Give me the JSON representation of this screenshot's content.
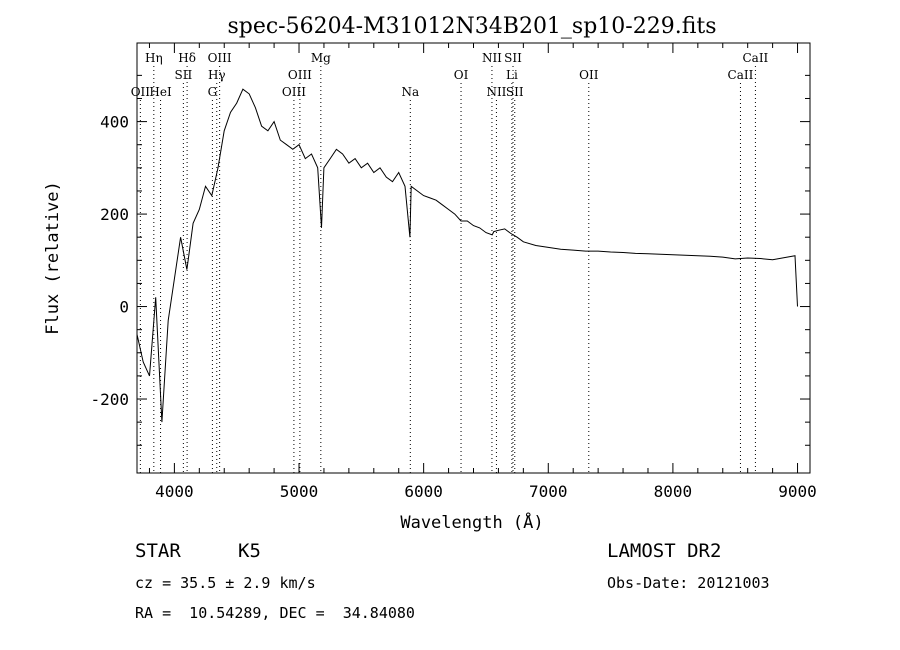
{
  "chart_data": {
    "type": "line",
    "title": "spec-56204-M31012N34B201_sp10-229.fits",
    "xlabel": "Wavelength (Å)",
    "ylabel": "Flux (relative)",
    "xlim": [
      3700,
      9100
    ],
    "ylim": [
      -360,
      570
    ],
    "xticks": [
      4000,
      5000,
      6000,
      7000,
      8000,
      9000
    ],
    "yticks": [
      -200,
      0,
      200,
      400
    ],
    "grid": false,
    "series": [
      {
        "x": [
          3700,
          3750,
          3800,
          3850,
          3900,
          3950,
          4000,
          4050,
          4100,
          4150,
          4200,
          4250,
          4300,
          4350,
          4400,
          4450,
          4500,
          4550,
          4600,
          4650,
          4700,
          4750,
          4800,
          4850,
          4900,
          4950,
          5000,
          5050,
          5100,
          5150,
          5180,
          5200,
          5250,
          5300,
          5350,
          5400,
          5450,
          5500,
          5550,
          5600,
          5650,
          5700,
          5750,
          5800,
          5850,
          5890,
          5900,
          5950,
          6000,
          6050,
          6100,
          6150,
          6200,
          6250,
          6300,
          6350,
          6400,
          6450,
          6500,
          6550,
          6563,
          6600,
          6650,
          6700,
          6750,
          6800,
          6900,
          7000,
          7100,
          7200,
          7300,
          7400,
          7500,
          7600,
          7700,
          7800,
          7900,
          8000,
          8100,
          8200,
          8300,
          8400,
          8500,
          8600,
          8700,
          8800,
          8900,
          8980,
          9000
        ],
        "y": [
          -60,
          -120,
          -150,
          20,
          -250,
          -30,
          60,
          150,
          80,
          180,
          210,
          260,
          240,
          300,
          380,
          420,
          440,
          470,
          460,
          430,
          390,
          380,
          400,
          360,
          350,
          340,
          350,
          320,
          330,
          300,
          170,
          300,
          320,
          340,
          330,
          310,
          320,
          300,
          310,
          290,
          300,
          280,
          270,
          290,
          260,
          150,
          260,
          250,
          240,
          235,
          230,
          220,
          210,
          200,
          185,
          185,
          175,
          170,
          160,
          155,
          162,
          165,
          168,
          158,
          150,
          140,
          132,
          128,
          124,
          122,
          120,
          120,
          118,
          117,
          115,
          114,
          113,
          112,
          111,
          110,
          109,
          107,
          103,
          105,
          104,
          101,
          106,
          110,
          0
        ]
      }
    ],
    "line_marks": [
      {
        "label": "Hη",
        "x": 3835,
        "row": 0
      },
      {
        "label": "Hδ",
        "x": 4102,
        "row": 0
      },
      {
        "label": "OIII",
        "x": 4363,
        "row": 0
      },
      {
        "label": "Mg",
        "x": 5175,
        "row": 0
      },
      {
        "label": "NII",
        "x": 6548,
        "row": 0
      },
      {
        "label": "SII",
        "x": 6717,
        "row": 0
      },
      {
        "label": "CaII",
        "x": 8662,
        "row": 0
      },
      {
        "label": "SII",
        "x": 4072,
        "row": 1
      },
      {
        "label": "Hγ",
        "x": 4340,
        "row": 1
      },
      {
        "label": "OIII",
        "x": 5007,
        "row": 1
      },
      {
        "label": "OI",
        "x": 6300,
        "row": 1
      },
      {
        "label": "Li",
        "x": 6708,
        "row": 1
      },
      {
        "label": "OII",
        "x": 7325,
        "row": 1
      },
      {
        "label": "CaII",
        "x": 8542,
        "row": 1
      },
      {
        "label": "OII",
        "x": 3727,
        "row": 2
      },
      {
        "label": "HeI",
        "x": 3889,
        "row": 2
      },
      {
        "label": "G",
        "x": 4305,
        "row": 2
      },
      {
        "label": "OIII",
        "x": 4959,
        "row": 2
      },
      {
        "label": "Na",
        "x": 5893,
        "row": 2
      },
      {
        "label": "NII",
        "x": 6584,
        "row": 2
      },
      {
        "label": "SII",
        "x": 6731,
        "row": 2
      }
    ]
  },
  "footer": {
    "object_class": "STAR",
    "subclass": "K5",
    "survey": "LAMOST DR2",
    "redshift": "cz = 35.5 ± 2.9 km/s",
    "obs_date": "Obs-Date: 20121003",
    "coords": "RA =  10.54289, DEC =  34.84080"
  }
}
